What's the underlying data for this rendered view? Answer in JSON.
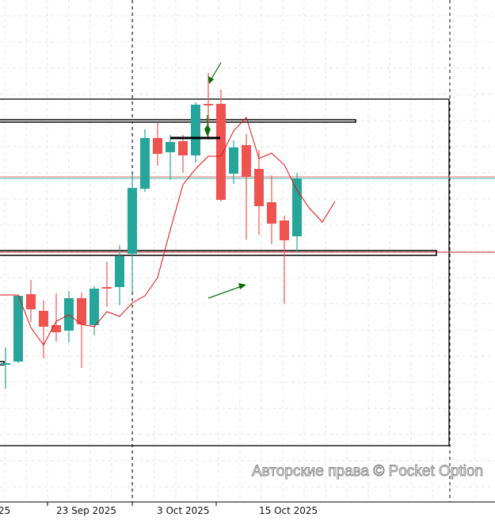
{
  "chart_data": {
    "type": "candlestick",
    "title": "",
    "x_tick_labels": [
      "25",
      "23 Sep 2025",
      "3 Oct 2025",
      "15 Oct 2025"
    ],
    "grid": true,
    "colors": {
      "up": "#26a69a",
      "down": "#ef5350",
      "ma": "#e01010",
      "drawing": "#000000",
      "arrow": "#0a6e0a",
      "grid": "#e4e4e4"
    },
    "candles": [
      {
        "o": 19.7,
        "h": 21.9,
        "l": 16.7,
        "c": 19.9
      },
      {
        "o": 20.1,
        "h": 28.5,
        "l": 19.9,
        "c": 28.4
      },
      {
        "o": 28.6,
        "h": 30.4,
        "l": 25.1,
        "c": 26.7
      },
      {
        "o": 26.5,
        "h": 27.8,
        "l": 20.5,
        "c": 24.5
      },
      {
        "o": 24.7,
        "h": 28.7,
        "l": 22.6,
        "c": 23.8
      },
      {
        "o": 24.0,
        "h": 29.0,
        "l": 22.5,
        "c": 28.1
      },
      {
        "o": 28.1,
        "h": 28.8,
        "l": 19.3,
        "c": 24.8
      },
      {
        "o": 24.7,
        "h": 29.6,
        "l": 23.4,
        "c": 29.3
      },
      {
        "o": 29.5,
        "h": 32.7,
        "l": 27.0,
        "c": 29.3
      },
      {
        "o": 29.5,
        "h": 34.8,
        "l": 27.2,
        "c": 33.4
      },
      {
        "o": 33.7,
        "h": 43.7,
        "l": 28.9,
        "c": 42.0
      },
      {
        "o": 41.9,
        "h": 49.4,
        "l": 41.5,
        "c": 48.3
      },
      {
        "o": 48.3,
        "h": 50.2,
        "l": 44.8,
        "c": 46.3
      },
      {
        "o": 46.5,
        "h": 48.7,
        "l": 43.0,
        "c": 47.8
      },
      {
        "o": 47.9,
        "h": 48.7,
        "l": 43.9,
        "c": 46.1
      },
      {
        "o": 46.1,
        "h": 52.8,
        "l": 45.2,
        "c": 52.5
      },
      {
        "o": 52.6,
        "h": 56.5,
        "l": 48.1,
        "c": 52.4
      },
      {
        "o": 52.6,
        "h": 54.4,
        "l": 40.3,
        "c": 40.5
      },
      {
        "o": 43.8,
        "h": 48.0,
        "l": 42.5,
        "c": 47.1
      },
      {
        "o": 47.4,
        "h": 48.8,
        "l": 35.5,
        "c": 43.4
      },
      {
        "o": 44.4,
        "h": 46.8,
        "l": 36.1,
        "c": 39.7
      },
      {
        "o": 40.2,
        "h": 43.6,
        "l": 34.9,
        "c": 37.5
      },
      {
        "o": 37.9,
        "h": 38.5,
        "l": 27.4,
        "c": 35.4
      },
      {
        "o": 35.9,
        "h": 43.9,
        "l": 33.9,
        "c": 43.2
      }
    ],
    "moving_average": [
      28.5,
      28.5,
      24.4,
      22.2,
      25.2,
      26.0,
      24.8,
      24.5,
      26.4,
      25.8,
      27.5,
      28.4,
      30.7,
      36.7,
      42.4,
      44.4,
      46.0,
      46.0,
      49.2,
      50.9,
      45.7,
      46.4,
      44.9,
      41.7,
      39.4,
      37.7,
      40.3
    ],
    "levels": {
      "upper_double": [
        50.6,
        50.3
      ],
      "mid_lines": [
        43.4,
        43.2
      ],
      "lower_band": [
        34.1,
        33.5
      ],
      "lower_red_line": 33.9,
      "short_line": 48.3,
      "rectangle": [
        53.2,
        9.5
      ]
    }
  },
  "watermark": "Авторские права © Pocket Option"
}
